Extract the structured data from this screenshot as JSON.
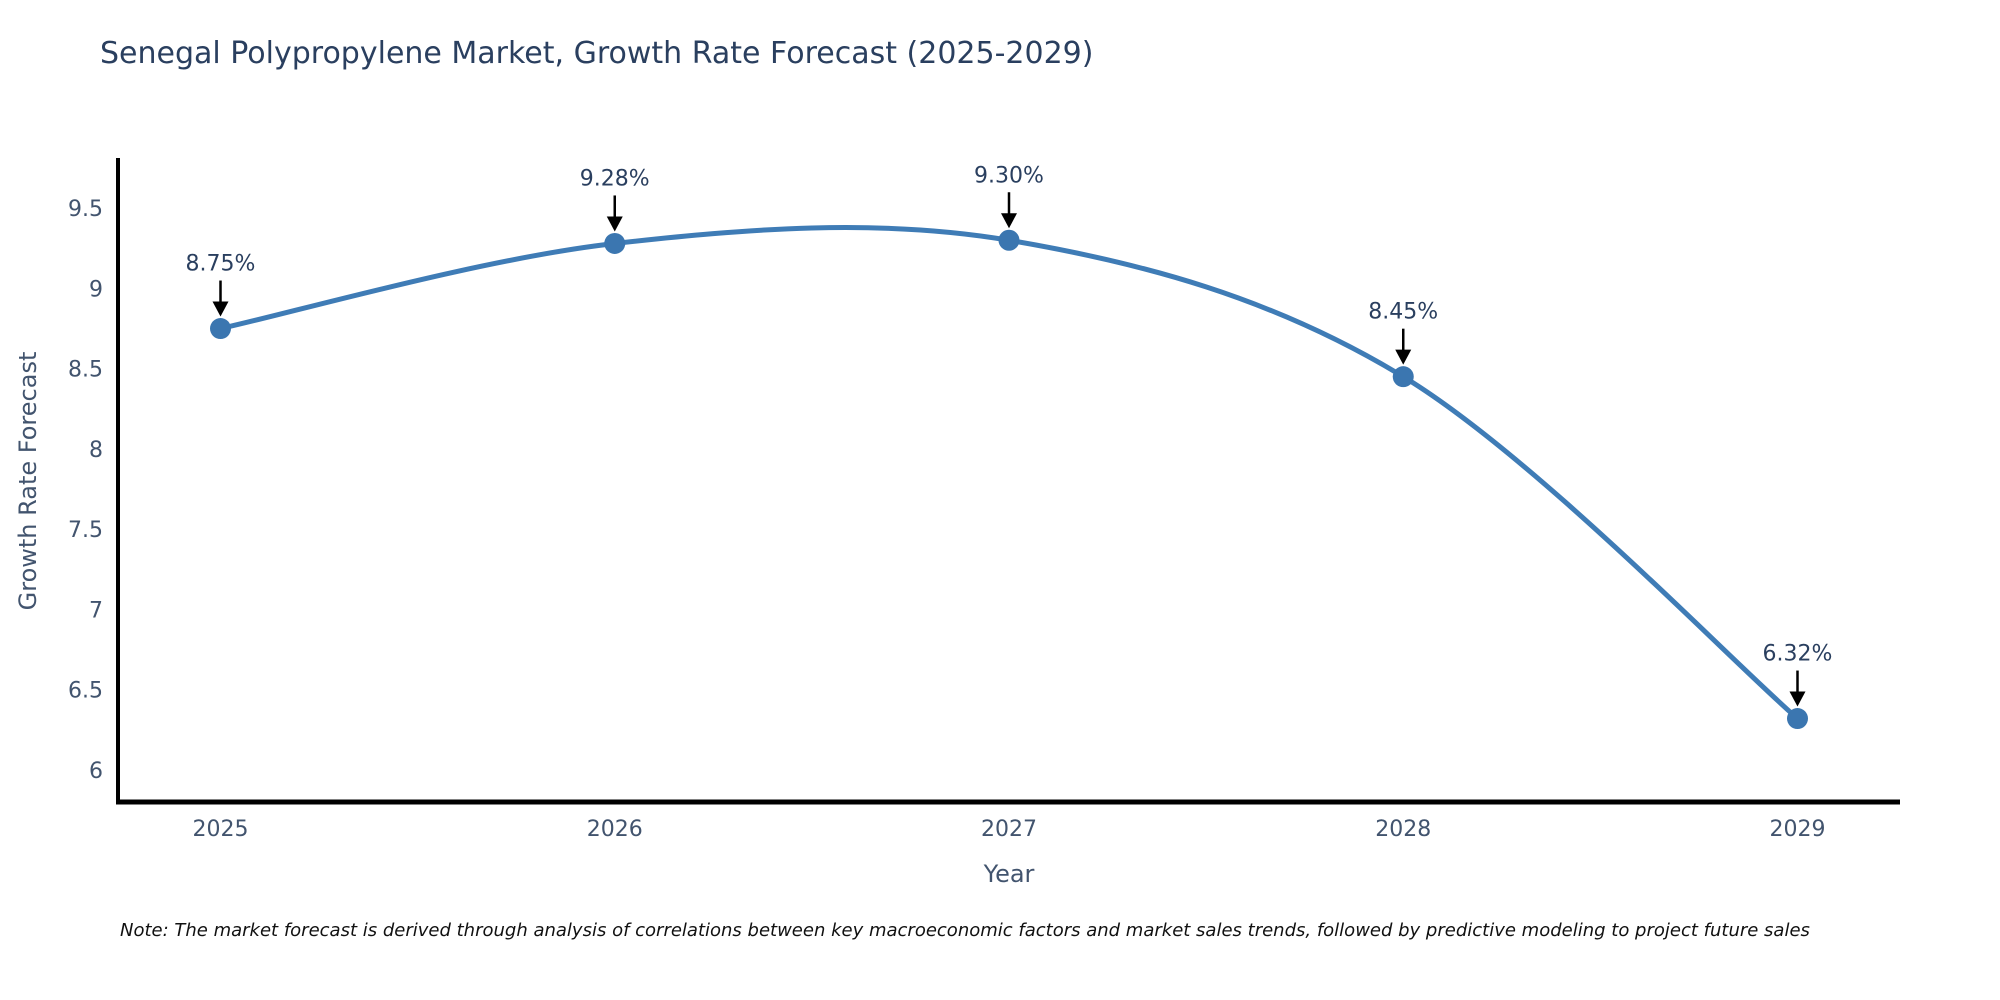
{
  "chart_data": {
    "type": "line",
    "title": "Senegal Polypropylene Market, Growth Rate Forecast (2025-2029)",
    "xlabel": "Year",
    "ylabel": "Growth Rate Forecast",
    "x": [
      2025,
      2026,
      2027,
      2028,
      2029
    ],
    "series": [
      {
        "name": "Growth Rate Forecast",
        "values": [
          8.75,
          9.28,
          9.3,
          8.45,
          6.32
        ],
        "point_labels": [
          "8.75%",
          "9.28%",
          "9.30%",
          "8.45%",
          "6.32%"
        ]
      }
    ],
    "yticks": [
      6,
      6.5,
      7,
      7.5,
      8,
      8.5,
      9,
      9.5
    ],
    "ylim": [
      5.8,
      9.8
    ],
    "xlim": [
      2024.74,
      2029.26
    ],
    "grid": false,
    "legend_position": "none",
    "line_shape": "spline",
    "colors": {
      "line": "#3f7cb6",
      "marker": "#3b76b0",
      "annotation_arrow": "#000000",
      "annotation_text": "#2a3f5f",
      "axis_line": "#000000",
      "tick_label": "#42546e",
      "title": "#2a3f5f"
    }
  },
  "footnote": "Note: The market forecast is derived through analysis of correlations between key macroeconomic factors and market sales trends, followed by predictive modeling to project future sales"
}
